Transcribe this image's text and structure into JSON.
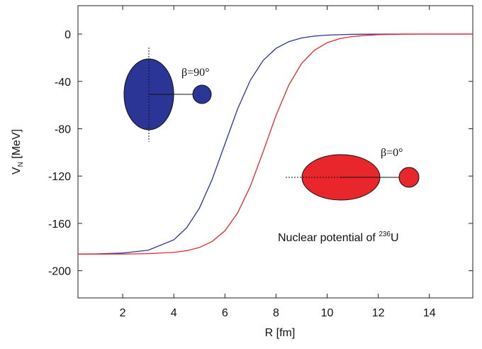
{
  "chart_data": {
    "type": "line",
    "x": [
      0.25,
      1,
      2,
      3,
      4,
      4.5,
      5,
      5.5,
      6,
      6.5,
      7,
      7.5,
      8,
      8.5,
      9,
      9.5,
      10,
      10.5,
      11,
      12,
      13,
      14,
      15,
      15.7
    ],
    "series": [
      {
        "color": "#2b3595",
        "values": [
          -185.9,
          -185.8,
          -185.1,
          -182.7,
          -173.9,
          -163.8,
          -147.2,
          -122.9,
          -93,
          -63.1,
          -38.8,
          -22.2,
          -12.1,
          -6.4,
          -3.3,
          -1.7,
          -0.9,
          -0.5,
          -0.2,
          -0.1,
          0,
          0,
          0,
          0
        ]
      },
      {
        "color": "#e8262b",
        "values": [
          -186.0,
          -186.0,
          -185.9,
          -185.6,
          -184.5,
          -183.1,
          -180.4,
          -175.3,
          -166.3,
          -151.1,
          -128.4,
          -99.2,
          -68.8,
          -43.1,
          -24.9,
          -13.7,
          -7.3,
          -3.8,
          -2.0,
          -0.5,
          -0.1,
          0,
          0,
          0
        ]
      }
    ],
    "xlim": [
      0.25,
      15.7
    ],
    "xticks": [
      2,
      4,
      6,
      8,
      10,
      12,
      14
    ],
    "ylim": [
      -223,
      24
    ],
    "yticks": [
      0,
      -40,
      -80,
      -120,
      -160,
      -200
    ],
    "x_label": "R [fm]",
    "y_label": {
      "main": "V",
      "sub": "N",
      "rest": " [MeV]"
    },
    "annotations": {
      "beta90": "β=90°",
      "beta0": "β=0°",
      "nuclear": {
        "text": "Nuclear potential of ",
        "sup": "236",
        "element": "U"
      }
    }
  }
}
